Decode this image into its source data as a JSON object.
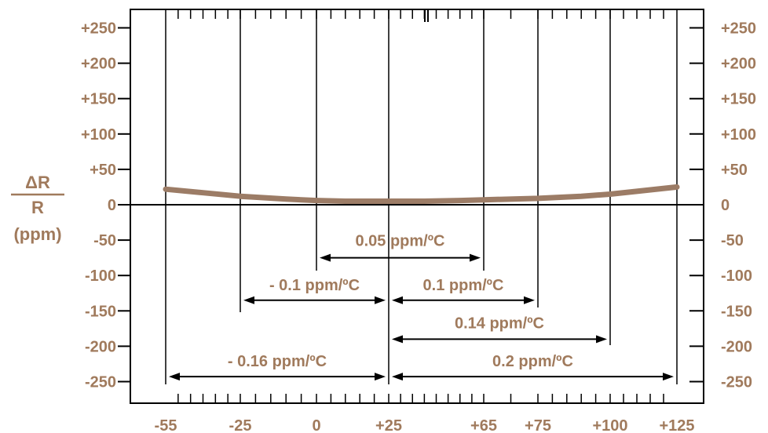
{
  "chart_data": {
    "type": "line",
    "ylabel": {
      "numerator": "ΔR",
      "denominator": "R",
      "unit": "(ppm)"
    },
    "x_ticks": [
      {
        "label": "-55",
        "value": -55
      },
      {
        "label": "-25",
        "value": -25
      },
      {
        "label": "0",
        "value": 0
      },
      {
        "label": "+25",
        "value": 25
      },
      {
        "label": "+65",
        "value": 65
      },
      {
        "label": "+75",
        "value": 75
      },
      {
        "label": "+100",
        "value": 100
      },
      {
        "label": "+125",
        "value": 125
      }
    ],
    "y_ticks": [
      {
        "label": "+250",
        "value": 250
      },
      {
        "label": "+200",
        "value": 200
      },
      {
        "label": "+150",
        "value": 150
      },
      {
        "label": "+100",
        "value": 100
      },
      {
        "label": "+50",
        "value": 50
      },
      {
        "label": "0",
        "value": 0
      },
      {
        "label": "-50",
        "value": -50
      },
      {
        "label": "-100",
        "value": -100
      },
      {
        "label": "-150",
        "value": -150
      },
      {
        "label": "-200",
        "value": -200
      },
      {
        "label": "-250",
        "value": -250
      }
    ],
    "xlim": [
      -55,
      125
    ],
    "ylim": [
      -250,
      250
    ],
    "grid": "vertical lines at labeled temperatures",
    "series": [
      {
        "color": "#9c7c66",
        "x": [
          -55,
          -40,
          -25,
          -10,
          0,
          10,
          25,
          40,
          55,
          65,
          75,
          90,
          100,
          110,
          125
        ],
        "y": [
          22,
          17,
          12,
          8,
          6,
          5,
          5,
          5,
          6,
          7,
          9,
          12,
          15,
          19,
          25
        ]
      }
    ],
    "annotations": [
      {
        "text": "0.05 ppm/ºC",
        "from": 0,
        "to": 65,
        "y": -75
      },
      {
        "text": "- 0.1 ppm/ºC",
        "from": -25,
        "to": 25,
        "y": -135
      },
      {
        "text": "0.1 ppm/ºC",
        "from": 25,
        "to": 75,
        "y": -135
      },
      {
        "text": "0.14 ppm/ºC",
        "from": 25,
        "to": 100,
        "y": -190
      },
      {
        "text": "- 0.16 ppm/ºC",
        "from": -55,
        "to": 25,
        "y": -243
      },
      {
        "text": "0.2 ppm/ºC",
        "from": 25,
        "to": 125,
        "y": -243
      }
    ],
    "colors": {
      "text": "#a07a5c",
      "axis": "#000000",
      "curve": "#9c7c66"
    }
  }
}
